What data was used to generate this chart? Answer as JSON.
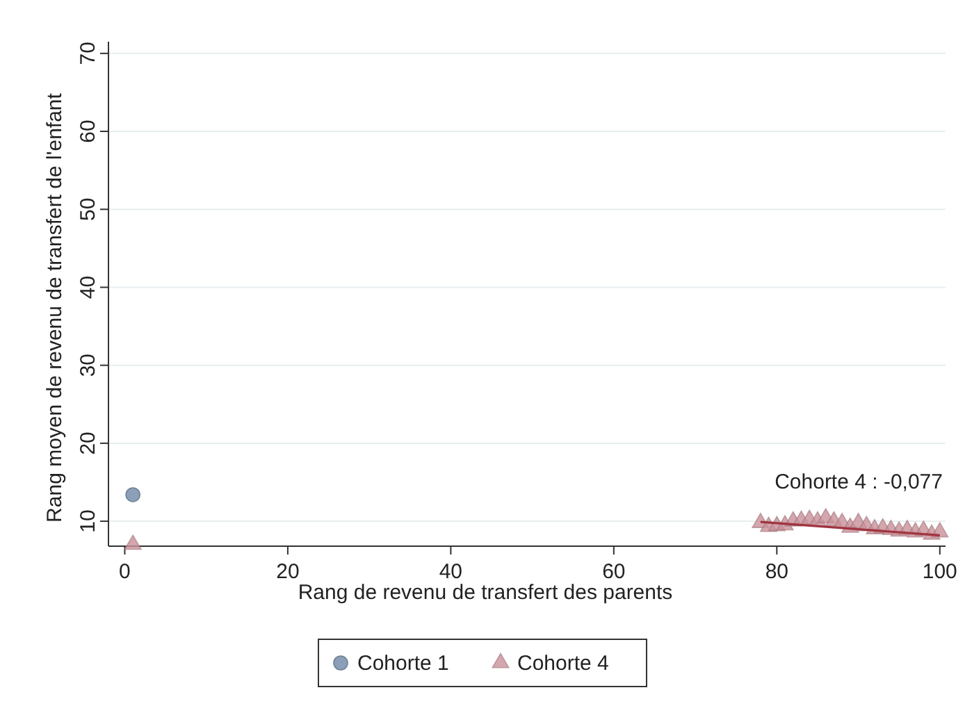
{
  "chart_data": {
    "type": "scatter",
    "xlabel": "Rang de revenu de transfert des parents",
    "ylabel": "Rang moyen de revenu de transfert de l'enfant",
    "xlim": [
      -2,
      100.7
    ],
    "xticks": [
      0,
      20,
      40,
      60,
      80,
      100
    ],
    "ylim": [
      6.8,
      71.5
    ],
    "yticks": [
      10,
      20,
      30,
      40,
      50,
      60,
      70
    ],
    "grid": "y",
    "legend": "bottom",
    "series": [
      {
        "name": "Cohorte 1",
        "color": "#8ba0b8",
        "marker": "circle",
        "x": [
          1
        ],
        "values": [
          13.4
        ]
      },
      {
        "name": "Cohorte 4",
        "color": "#c99098",
        "marker": "triangle",
        "x": [
          1,
          78,
          79,
          80,
          81,
          82,
          83,
          84,
          85,
          86,
          87,
          88,
          89,
          90,
          91,
          92,
          93,
          94,
          95,
          96,
          97,
          98,
          99,
          100
        ],
        "values": [
          7.0,
          9.8,
          9.3,
          9.4,
          9.5,
          10.0,
          10.1,
          10.2,
          10.0,
          10.4,
          10.0,
          9.8,
          9.2,
          9.8,
          9.4,
          9.0,
          9.1,
          8.9,
          8.7,
          8.9,
          8.6,
          8.8,
          8.3,
          8.6
        ]
      },
      {
        "type": "line",
        "color": "#a0343f",
        "marker": "none",
        "x": [
          78,
          100
        ],
        "values": [
          9.9,
          8.2
        ]
      }
    ],
    "annotations": [
      "Cohorte 4 : -0,077"
    ]
  }
}
